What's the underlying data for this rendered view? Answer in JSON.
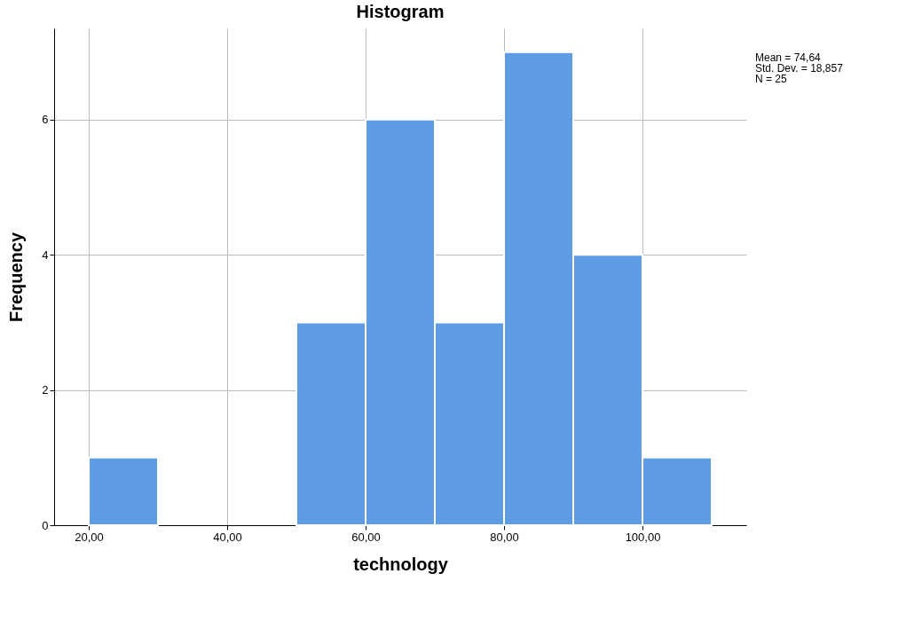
{
  "chart_data": {
    "type": "histogram",
    "title": "Histogram",
    "xlabel": "technology",
    "ylabel": "Frequency",
    "bins": [
      20,
      30,
      40,
      50,
      60,
      70,
      80,
      90,
      100,
      110
    ],
    "values": [
      1,
      0,
      0,
      3,
      6,
      3,
      7,
      4,
      1
    ],
    "color": "#5e9ce6",
    "xlim": [
      15,
      115
    ],
    "xticks": [
      {
        "value": 20,
        "label": "20,00"
      },
      {
        "value": 40,
        "label": "40,00"
      },
      {
        "value": 60,
        "label": "60,00"
      },
      {
        "value": 80,
        "label": "80,00"
      },
      {
        "value": 100,
        "label": "100,00"
      }
    ],
    "ylim": [
      0,
      7.35
    ],
    "yticks": [
      0,
      2,
      4,
      6
    ],
    "grid": true,
    "annotations": [
      "Mean = 74,64",
      "Std. Dev. = 18,857",
      "N = 25"
    ]
  }
}
